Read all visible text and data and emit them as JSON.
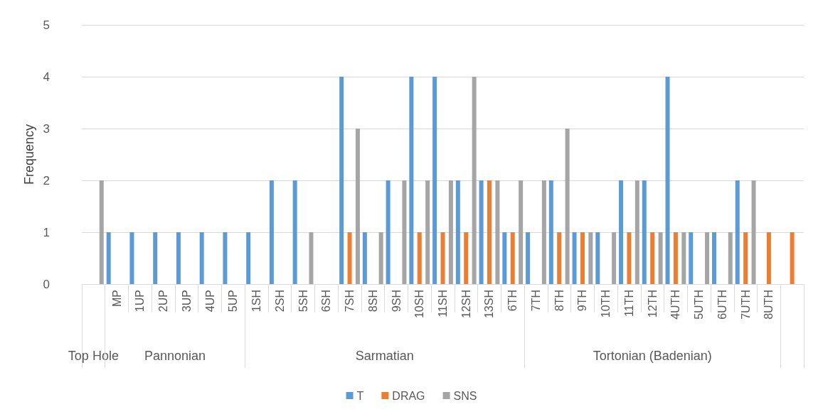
{
  "chart_data": {
    "type": "bar",
    "ylabel": "Frequency",
    "categories": [
      null,
      "MP",
      "1UP",
      "2UP",
      "3UP",
      "4UP",
      "5UP",
      "1SH",
      "2SH",
      "5SH",
      "6SH",
      "7SH",
      "8SH",
      "9SH",
      "10SH",
      "11SH",
      "12SH",
      "13SH",
      "6TH",
      "7TH",
      "8TH",
      "9TH",
      "10TH",
      "11TH",
      "12TH",
      "4UTH",
      "5UTH",
      "6UTH",
      "7UTH",
      "8UTH",
      null
    ],
    "series": [
      {
        "name": "T",
        "color": "#5b9bd5",
        "values": [
          0,
          1,
          1,
          1,
          1,
          1,
          1,
          1,
          2,
          2,
          0,
          4,
          1,
          2,
          4,
          4,
          2,
          2,
          1,
          1,
          2,
          1,
          1,
          2,
          2,
          4,
          1,
          1,
          2,
          0,
          0
        ]
      },
      {
        "name": "DRAG",
        "color": "#ed7d31",
        "values": [
          0,
          0,
          0,
          0,
          0,
          0,
          0,
          0,
          0,
          0,
          0,
          1,
          0,
          0,
          1,
          1,
          1,
          2,
          1,
          0,
          1,
          1,
          0,
          1,
          1,
          1,
          0,
          0,
          1,
          1,
          1
        ]
      },
      {
        "name": "SNS",
        "color": "#a5a5a5",
        "values": [
          2,
          0,
          0,
          0,
          0,
          0,
          0,
          0,
          0,
          1,
          0,
          3,
          1,
          2,
          2,
          2,
          4,
          2,
          2,
          2,
          3,
          1,
          1,
          2,
          1,
          1,
          1,
          1,
          2,
          0,
          0
        ]
      }
    ],
    "annotations": [
      "Top Hole",
      "Pannonian",
      "Sarmatian",
      "Tortonian (Badenian)"
    ],
    "ylim": [
      0,
      5
    ],
    "yticks": [
      0,
      1,
      2,
      3,
      4,
      5
    ],
    "grid": "y",
    "legend": "bottom"
  }
}
